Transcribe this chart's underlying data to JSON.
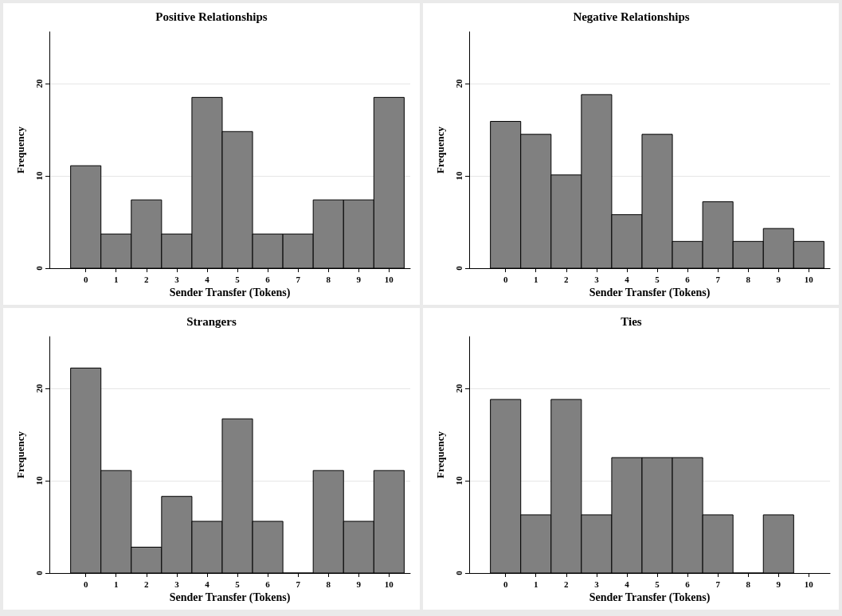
{
  "chart_data": [
    {
      "type": "histogram",
      "title": "Positive Relationships",
      "xlabel": "Sender Transfer (Tokens)",
      "ylabel": "Frequency",
      "bins": [
        -0.5,
        0.5,
        1.5,
        2.5,
        3.5,
        4.5,
        5.5,
        6.5,
        7.5,
        8.5,
        9.5,
        10.5
      ],
      "values": [
        11.1,
        3.7,
        7.4,
        3.7,
        18.5,
        14.8,
        3.7,
        3.7,
        7.4,
        7.4,
        18.5
      ],
      "color": "#808080",
      "xlim": [
        -1.2,
        10.7
      ],
      "xticks": [
        0,
        1,
        2,
        3,
        4,
        5,
        6,
        7,
        8,
        9,
        10
      ],
      "ylim": [
        0,
        25.6
      ],
      "yticks": [
        0,
        10,
        20
      ],
      "grid": "y"
    },
    {
      "type": "histogram",
      "title": "Negative Relationships",
      "xlabel": "Sender Transfer (Tokens)",
      "ylabel": "Frequency",
      "bins": [
        -0.5,
        0.5,
        1.5,
        2.5,
        3.5,
        4.5,
        5.5,
        6.5,
        7.5,
        8.5,
        9.5,
        10.5
      ],
      "values": [
        15.9,
        14.5,
        10.1,
        18.8,
        5.8,
        14.5,
        2.9,
        7.2,
        2.9,
        4.3,
        2.9
      ],
      "color": "#808080",
      "xlim": [
        -1.2,
        10.7
      ],
      "xticks": [
        0,
        1,
        2,
        3,
        4,
        5,
        6,
        7,
        8,
        9,
        10
      ],
      "ylim": [
        0,
        25.6
      ],
      "yticks": [
        0,
        10,
        20
      ],
      "grid": "y"
    },
    {
      "type": "histogram",
      "title": "Strangers",
      "xlabel": "Sender Transfer (Tokens)",
      "ylabel": "Frequency",
      "bins": [
        -0.5,
        0.5,
        1.5,
        2.5,
        3.5,
        4.5,
        5.5,
        6.5,
        7.5,
        8.5,
        9.5,
        10.5
      ],
      "values": [
        22.2,
        11.1,
        2.8,
        8.3,
        5.6,
        16.7,
        5.6,
        0,
        11.1,
        5.6,
        11.1
      ],
      "color": "#808080",
      "xlim": [
        -1.2,
        10.7
      ],
      "xticks": [
        0,
        1,
        2,
        3,
        4,
        5,
        6,
        7,
        8,
        9,
        10
      ],
      "ylim": [
        0,
        25.6
      ],
      "yticks": [
        0,
        10,
        20
      ],
      "grid": "y"
    },
    {
      "type": "histogram",
      "title": "Ties",
      "xlabel": "Sender Transfer (Tokens)",
      "ylabel": "Frequency",
      "bins": [
        -0.5,
        0.5,
        1.5,
        2.5,
        3.5,
        4.5,
        5.5,
        6.5,
        7.5,
        8.5,
        9.5
      ],
      "values": [
        18.8,
        6.3,
        18.8,
        6.3,
        12.5,
        12.5,
        12.5,
        6.3,
        0,
        6.3
      ],
      "color": "#808080",
      "xlim": [
        -1.2,
        10.7
      ],
      "xticks": [
        0,
        1,
        2,
        3,
        4,
        5,
        6,
        7,
        8,
        9,
        10
      ],
      "ylim": [
        0,
        25.6
      ],
      "yticks": [
        0,
        10,
        20
      ],
      "grid": "y"
    }
  ]
}
